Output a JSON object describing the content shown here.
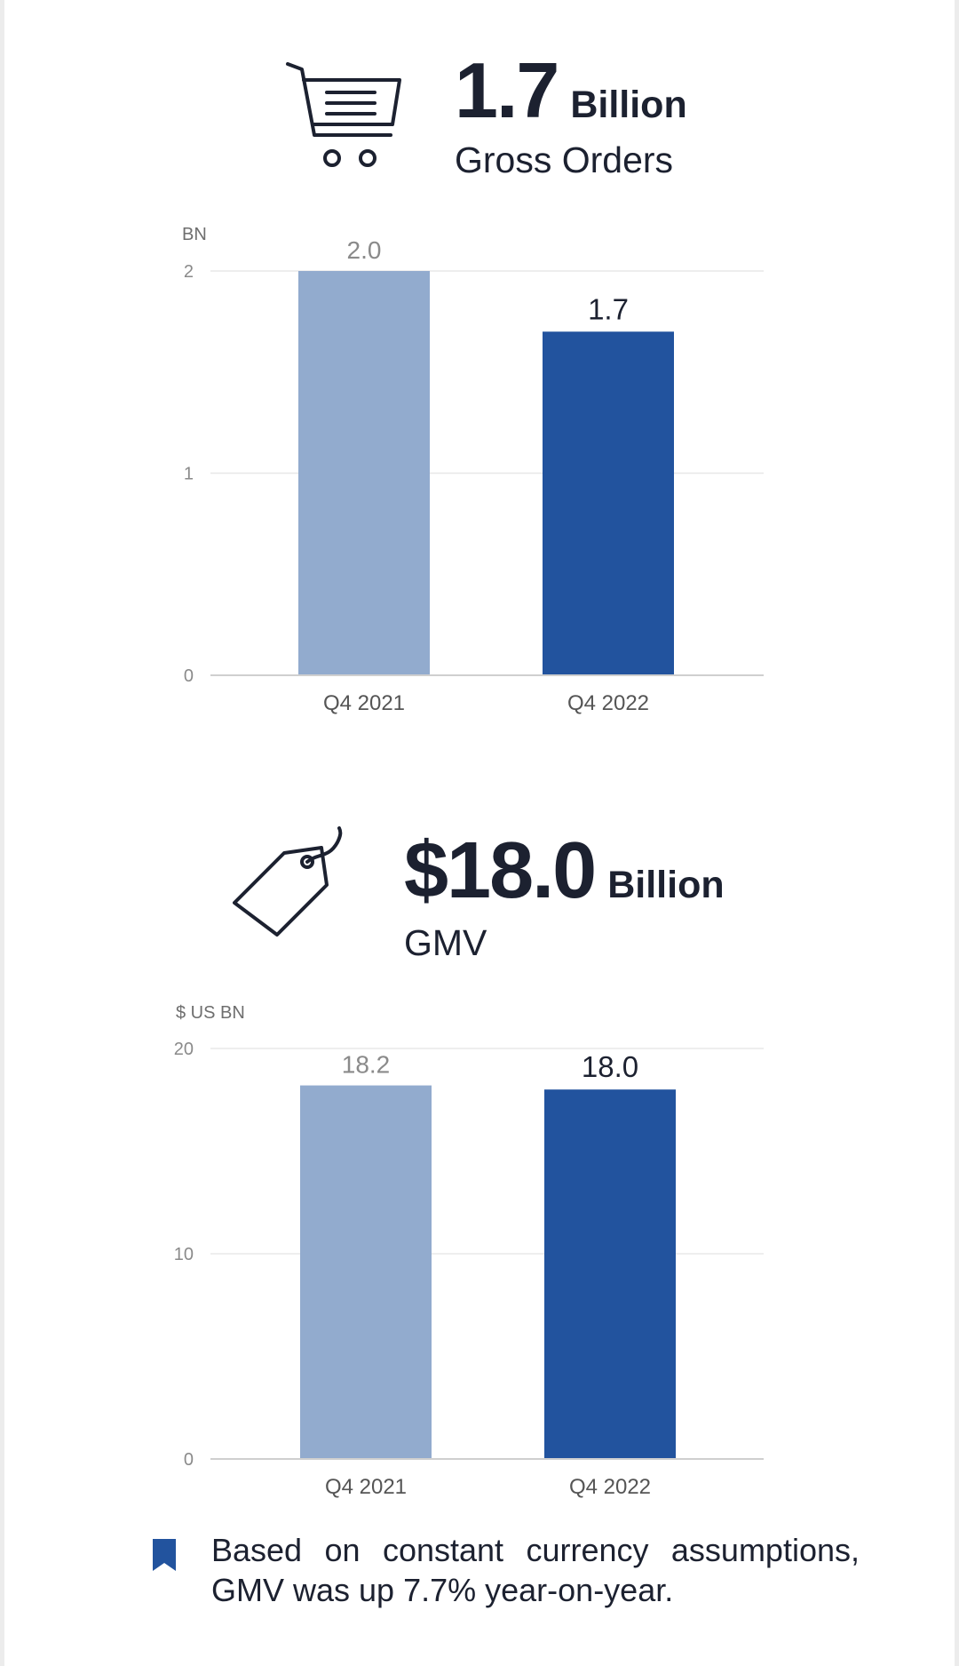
{
  "headline1": {
    "number": "1.7",
    "unit": "Billion",
    "subtitle": "Gross Orders",
    "icon": "shopping-cart-icon"
  },
  "headline2": {
    "number": "$18.0",
    "unit": "Billion",
    "subtitle": "GMV",
    "icon": "price-tag-icon"
  },
  "colors": {
    "prior": "#92abce",
    "current": "#22539e",
    "text": "#1c2130",
    "grid": "#e8e8e8",
    "axis": "#cfcfcf",
    "tick": "#8a8a8a"
  },
  "chart_data": [
    {
      "type": "bar",
      "unit_label": "BN",
      "categories": [
        "Q4 2021",
        "Q4 2022"
      ],
      "values": [
        2.0,
        1.7
      ],
      "value_labels": [
        "2.0",
        "1.7"
      ],
      "ylim": [
        0,
        2
      ],
      "yticks": [
        0,
        1,
        2
      ],
      "grid": true
    },
    {
      "type": "bar",
      "unit_label": "$ US BN",
      "categories": [
        "Q4 2021",
        "Q4 2022"
      ],
      "values": [
        18.2,
        18.0
      ],
      "value_labels": [
        "18.2",
        "18.0"
      ],
      "ylim": [
        0,
        20
      ],
      "yticks": [
        0,
        10,
        20
      ],
      "grid": true
    }
  ],
  "footnote": {
    "text": "Based on constant currency assumptions, GMV was up 7.7% year-on-year.",
    "icon": "bookmark-icon"
  }
}
